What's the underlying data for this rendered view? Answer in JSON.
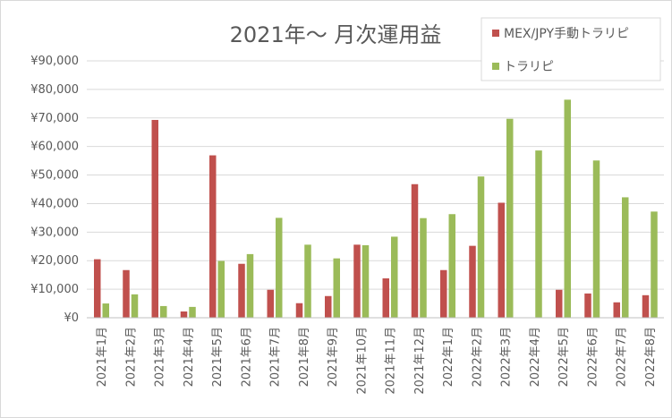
{
  "chart_data": {
    "type": "bar",
    "title": "2021年〜 月次運用益",
    "xlabel": "",
    "ylabel": "",
    "ylim": [
      0,
      90000
    ],
    "yticks": [
      "¥0",
      "¥10,000",
      "¥20,000",
      "¥30,000",
      "¥40,000",
      "¥50,000",
      "¥60,000",
      "¥70,000",
      "¥80,000",
      "¥90,000"
    ],
    "grid": true,
    "legend_position": "top-right",
    "categories": [
      "2021年1月",
      "2021年2月",
      "2021年3月",
      "2021年4月",
      "2021年5月",
      "2021年6月",
      "2021年7月",
      "2021年8月",
      "2021年9月",
      "2021年10月",
      "2021年11月",
      "2021年12月",
      "2022年1月",
      "2022年2月",
      "2022年3月",
      "2022年4月",
      "2022年5月",
      "2022年6月",
      "2022年7月",
      "2022年8月"
    ],
    "series": [
      {
        "name": "MEX/JPY手動トラリピ",
        "color": "#c0504d",
        "values": [
          20500,
          16700,
          69300,
          2200,
          56900,
          18900,
          9800,
          5100,
          7600,
          25600,
          13800,
          46800,
          16700,
          25200,
          40300,
          0,
          9800,
          8500,
          5400,
          7900
        ]
      },
      {
        "name": "トラリピ",
        "color": "#9bbb59",
        "values": [
          5000,
          8200,
          4100,
          3800,
          19900,
          22300,
          35000,
          25600,
          20800,
          25400,
          28400,
          34900,
          36300,
          49500,
          69700,
          58600,
          76400,
          55100,
          42200,
          37200
        ]
      }
    ]
  }
}
